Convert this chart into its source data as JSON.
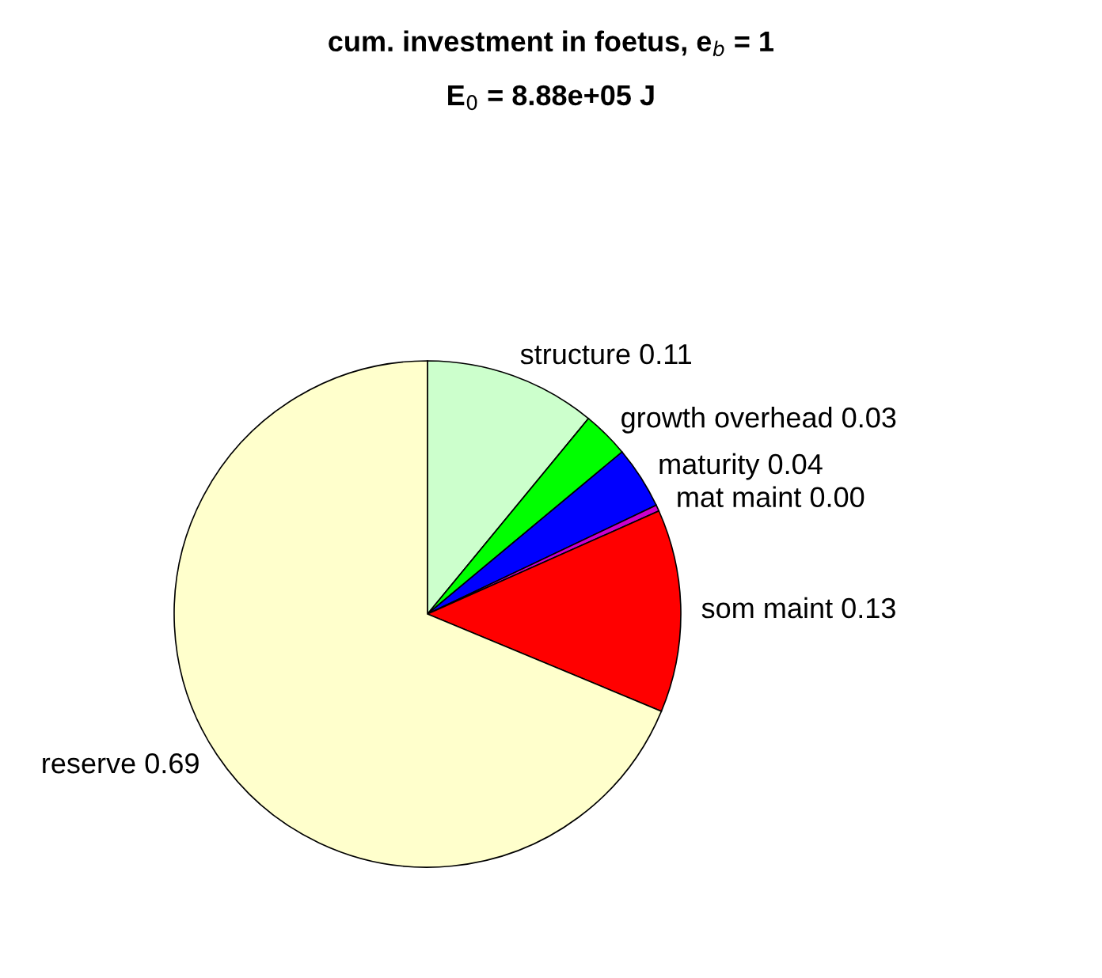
{
  "chart_data": {
    "type": "pie",
    "title": "cum. investment in foetus, e$_{b}$ = 1",
    "subtitle": "E$_{0}$ = 8.88e+05 J",
    "categories": [
      "structure",
      "growth overhead",
      "maturity",
      "mat maint",
      "som maint",
      "reserve"
    ],
    "values": [
      0.11,
      0.03,
      0.04,
      0.004,
      0.13,
      0.69
    ],
    "value_labels": [
      "0.11",
      "0.03",
      "0.04",
      "0.00",
      "0.13",
      "0.69"
    ],
    "colors": [
      "#ccffcc",
      "#00ff00",
      "#0000ff",
      "#cc00cc",
      "#ff0000",
      "#ffffcc"
    ],
    "legend": false
  }
}
